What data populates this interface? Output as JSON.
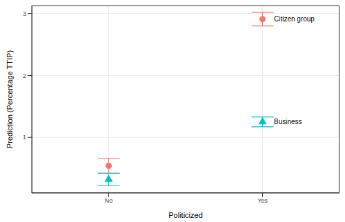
{
  "chart_data": {
    "type": "scatter",
    "x_label": "Politicized",
    "y_label": "Prediction (Percentage TTIP)",
    "categories": [
      "No",
      "Yes"
    ],
    "series": [
      {
        "name": "Citizen group",
        "color": "#F8766D",
        "marker": "circle",
        "values": [
          0.54,
          2.91
        ],
        "errors": [
          0.12,
          0.11
        ]
      },
      {
        "name": "Business",
        "color": "#00BFC4",
        "marker": "triangle",
        "values": [
          0.32,
          1.25
        ],
        "errors": [
          0.1,
          0.08
        ]
      }
    ],
    "ylim": [
      0.1,
      3.13
    ],
    "yticks": [
      1,
      2,
      3
    ],
    "grid": true
  }
}
